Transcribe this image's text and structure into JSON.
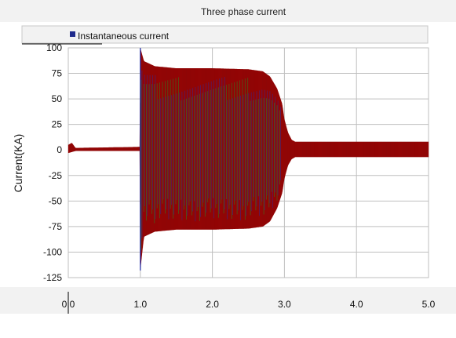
{
  "window": {
    "title": "Three phase current"
  },
  "colors": {
    "header_bg": "#f2f2f2",
    "chart_bg": "#ffffff",
    "frame_border": "#c8c8c8",
    "grid": "#bfbfbf",
    "legend_marker": "#1f2a8c",
    "wave_main": "#7a0a0a",
    "wave_red": "#b00000",
    "wave_green": "#1a9a2a",
    "wave_blue": "#2030b0"
  },
  "chart_data": {
    "type": "line",
    "title": "Three phase current",
    "xlabel": "",
    "ylabel": "Current(KA)",
    "xlim": [
      0,
      5
    ],
    "ylim": [
      -125,
      100
    ],
    "x_ticks": [
      0.0,
      1.0,
      2.0,
      3.0,
      4.0,
      5.0
    ],
    "x_tick_labels": [
      "0.0",
      "1.0",
      "2.0",
      "3.0",
      "4.0",
      "5.0"
    ],
    "y_ticks": [
      100,
      75,
      50,
      25,
      0,
      -25,
      -50,
      -75,
      -100,
      -125
    ],
    "y_tick_labels": [
      "100",
      "75",
      "50",
      "25",
      "0",
      "-25",
      "-50",
      "-75",
      "-100",
      "-125"
    ],
    "grid": true,
    "legend": {
      "placement": "top-left",
      "entries": [
        "Instantaneous current"
      ]
    },
    "series": [
      {
        "name": "Instantaneous current",
        "envelope_points": [
          {
            "t": 0.0,
            "upper": 5,
            "lower": -3
          },
          {
            "t": 0.05,
            "upper": 7,
            "lower": -2
          },
          {
            "t": 0.1,
            "upper": 2,
            "lower": -1
          },
          {
            "t": 0.99,
            "upper": 3,
            "lower": -1
          },
          {
            "t": 1.0,
            "upper": 100,
            "lower": -118
          },
          {
            "t": 1.05,
            "upper": 87,
            "lower": -85
          },
          {
            "t": 1.2,
            "upper": 82,
            "lower": -80
          },
          {
            "t": 1.5,
            "upper": 80,
            "lower": -78
          },
          {
            "t": 2.0,
            "upper": 80,
            "lower": -78
          },
          {
            "t": 2.5,
            "upper": 79,
            "lower": -77
          },
          {
            "t": 2.7,
            "upper": 77,
            "lower": -75
          },
          {
            "t": 2.8,
            "upper": 72,
            "lower": -70
          },
          {
            "t": 2.9,
            "upper": 60,
            "lower": -57
          },
          {
            "t": 2.97,
            "upper": 45,
            "lower": -42
          },
          {
            "t": 3.0,
            "upper": 30,
            "lower": -28
          },
          {
            "t": 3.05,
            "upper": 17,
            "lower": -15
          },
          {
            "t": 3.1,
            "upper": 10,
            "lower": -9
          },
          {
            "t": 3.15,
            "upper": 8,
            "lower": -7
          },
          {
            "t": 3.2,
            "upper": 8,
            "lower": -7
          },
          {
            "t": 5.0,
            "upper": 8,
            "lower": -7
          }
        ]
      }
    ]
  }
}
